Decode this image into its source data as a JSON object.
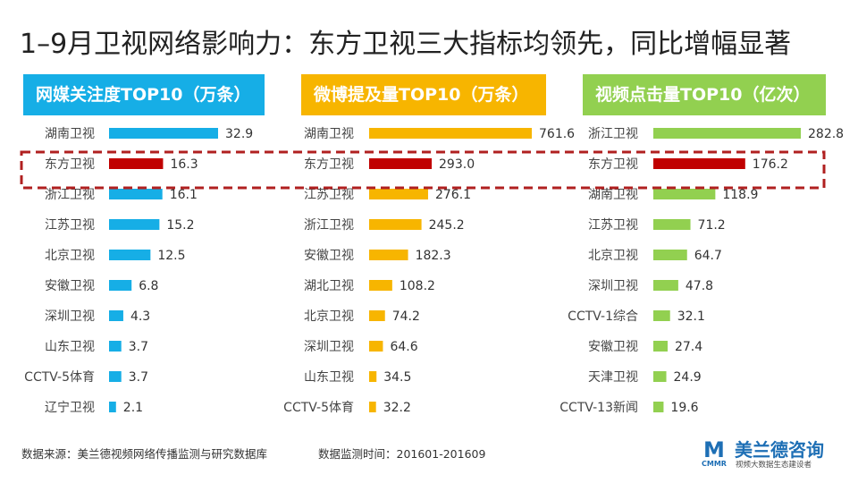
{
  "title": "1–9月卫视网络影响力：东方卫视三大指标均领先，同比增幅显著",
  "colors": {
    "panel1": "#16aee6",
    "panel2": "#f7b500",
    "panel3": "#92d050",
    "highlight": "#c00000"
  },
  "chart_data": [
    {
      "type": "bar",
      "orientation": "horizontal",
      "title": "网媒关注度TOP10（万条）",
      "categories": [
        "湖南卫视",
        "东方卫视",
        "浙江卫视",
        "江苏卫视",
        "北京卫视",
        "安徽卫视",
        "深圳卫视",
        "山东卫视",
        "CCTV-5体育",
        "辽宁卫视"
      ],
      "values": [
        32.9,
        16.3,
        16.1,
        15.2,
        12.5,
        6.8,
        4.3,
        3.7,
        3.7,
        2.1
      ],
      "labels": [
        "32.9",
        "16.3",
        "16.1",
        "15.2",
        "12.5",
        "6.8",
        "4.3",
        "3.7",
        "3.7",
        "2.1"
      ],
      "highlight": "东方卫视",
      "grid": false
    },
    {
      "type": "bar",
      "orientation": "horizontal",
      "title": "微博提及量TOP10（万条）",
      "categories": [
        "湖南卫视",
        "东方卫视",
        "江苏卫视",
        "浙江卫视",
        "安徽卫视",
        "湖北卫视",
        "北京卫视",
        "深圳卫视",
        "山东卫视",
        "CCTV-5体育"
      ],
      "values": [
        761.6,
        293.0,
        276.1,
        245.2,
        182.3,
        108.2,
        74.2,
        64.6,
        34.5,
        32.2
      ],
      "labels": [
        "761.6",
        "293.0",
        "276.1",
        "245.2",
        "182.3",
        "108.2",
        "74.2",
        "64.6",
        "34.5",
        "32.2"
      ],
      "highlight": "东方卫视",
      "grid": false
    },
    {
      "type": "bar",
      "orientation": "horizontal",
      "title": "视频点击量TOP10（亿次）",
      "categories": [
        "浙江卫视",
        "东方卫视",
        "湖南卫视",
        "江苏卫视",
        "北京卫视",
        "深圳卫视",
        "CCTV-1综合",
        "安徽卫视",
        "天津卫视",
        "CCTV-13新闻"
      ],
      "values": [
        282.8,
        176.2,
        118.9,
        71.2,
        64.7,
        47.8,
        32.1,
        27.4,
        24.9,
        19.6
      ],
      "labels": [
        "282.8",
        "176.2",
        "118.9",
        "71.2",
        "64.7",
        "47.8",
        "32.1",
        "27.4",
        "24.9",
        "19.6"
      ],
      "highlight": "东方卫视",
      "grid": false
    }
  ],
  "footer": {
    "source": "数据来源：美兰德视频网络传播监测与研究数据库",
    "period": "数据监测时间：201601-201609"
  },
  "logo": {
    "mark_text": "M",
    "mark_sub": "CMMR",
    "name": "美兰德咨询",
    "tagline": "视频大数据生态建设者"
  }
}
